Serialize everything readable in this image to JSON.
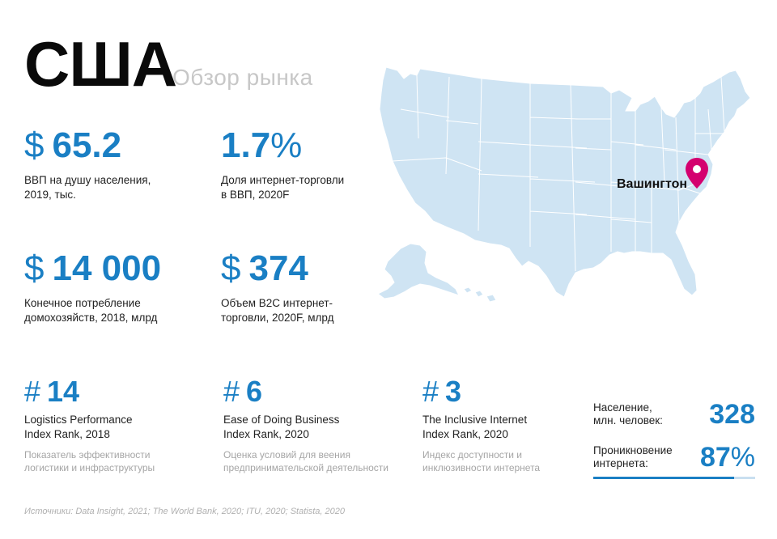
{
  "header": {
    "title": "США",
    "subtitle": "Обзор рынка"
  },
  "stats": {
    "gdp": {
      "symbol": "$",
      "value": "65.2",
      "label_line1": "ВВП на душу населения,",
      "label_line2": "2019, тыс."
    },
    "ecom_share": {
      "value": "1.7",
      "unit": "%",
      "label_line1": "Доля интернет-торговли",
      "label_line2": "в ВВП, 2020F"
    },
    "consumption": {
      "symbol": "$",
      "value": "14 000",
      "label_line1": "Конечное потребление",
      "label_line2": "домохозяйств, 2018, млрд"
    },
    "b2c": {
      "symbol": "$",
      "value": "374",
      "label_line1": "Объем B2C интернет-",
      "label_line2": "торговли, 2020F, млрд"
    }
  },
  "ranks": {
    "logistics": {
      "symbol": "#",
      "value": "14",
      "label_line1": "Logistics Performance",
      "label_line2": "Index Rank, 2018",
      "desc_line1": "Показатель эффективности",
      "desc_line2": "логистики и инфраструктуры"
    },
    "business": {
      "symbol": "#",
      "value": "6",
      "label_line1": "Ease of Doing Business",
      "label_line2": "Index Rank, 2020",
      "desc_line1": "Оценка условий для веения",
      "desc_line2": "предпринимательской деятельности"
    },
    "internet": {
      "symbol": "#",
      "value": "3",
      "label_line1": "The Inclusive Internet",
      "label_line2": "Index Rank, 2020",
      "desc_line1": "Индекс доступности и",
      "desc_line2": "инклюзивности интернета"
    }
  },
  "population": {
    "label_line1": "Население,",
    "label_line2": "млн. человек:",
    "value": "328"
  },
  "penetration": {
    "label_line1": "Проникновение",
    "label_line2": "интернета:",
    "value": "87",
    "unit": "%",
    "fraction": 0.87
  },
  "map": {
    "city": "Вашингтон",
    "land_color": "#cfe4f3",
    "border_color": "#ffffff",
    "pin_color": "#d4006f",
    "pin_icon": "map-pin-icon"
  },
  "sources": "Источники: Data Insight, 2021; The World Bank, 2020; ITU, 2020; Statista, 2020",
  "colors": {
    "accent": "#1a7fc4",
    "muted": "#a5a5a5",
    "subtitle": "#c7c7c7"
  }
}
